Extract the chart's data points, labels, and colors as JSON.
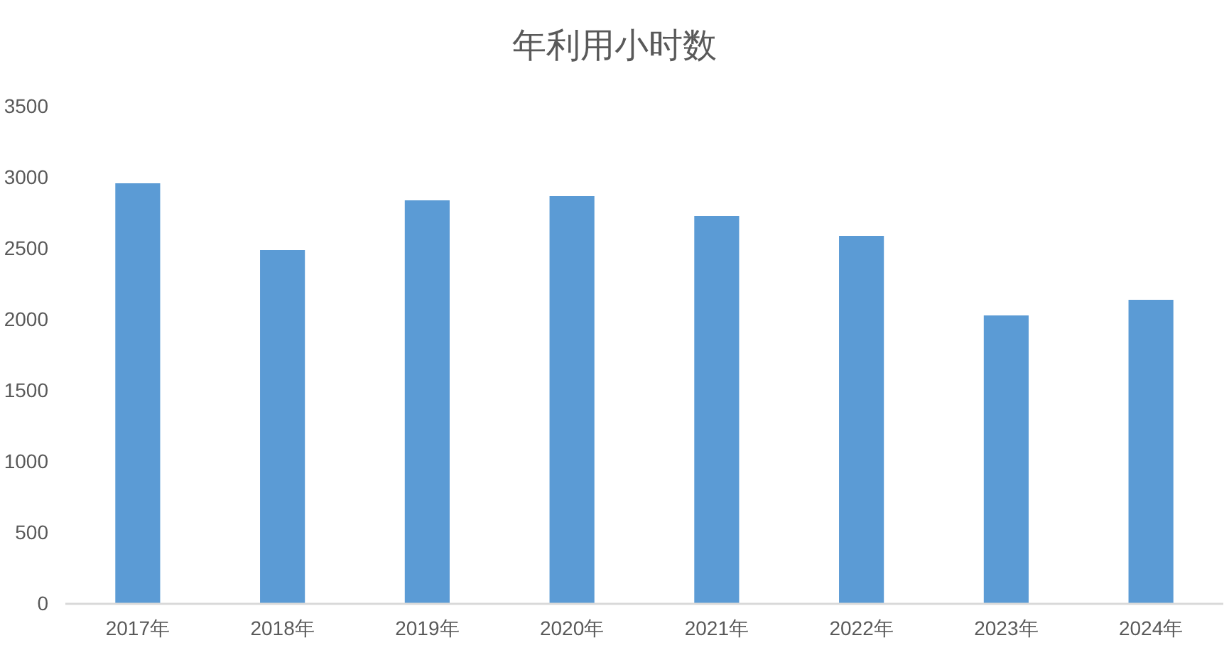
{
  "chart_data": {
    "type": "bar",
    "title": "年利用小时数",
    "categories": [
      "2017年",
      "2018年",
      "2019年",
      "2020年",
      "2021年",
      "2022年",
      "2023年",
      "2024年"
    ],
    "values": [
      2960,
      2490,
      2840,
      2870,
      2730,
      2590,
      2030,
      2140
    ],
    "color": "#5b9bd5",
    "ylim": [
      0,
      3500
    ],
    "yticks": [
      0,
      500,
      1000,
      1500,
      2000,
      2500,
      3000,
      3500
    ],
    "grid": false,
    "legend": false
  }
}
